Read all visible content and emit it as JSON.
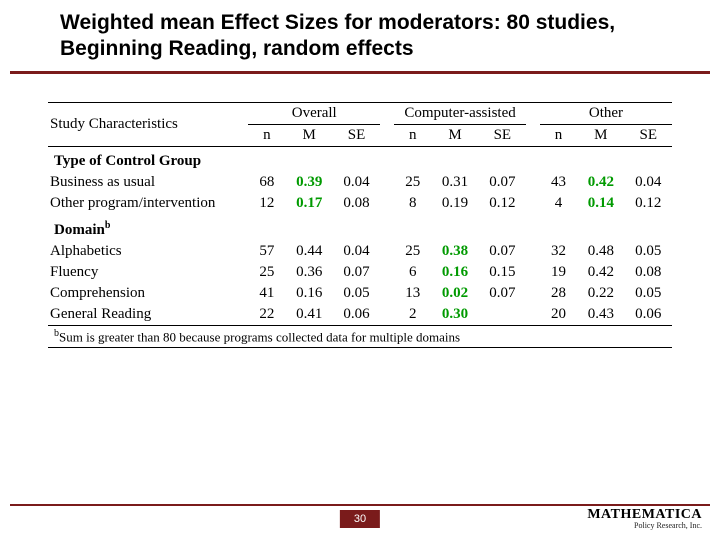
{
  "title": "Weighted mean Effect Sizes for moderators: 80 studies, Beginning Reading, random effects",
  "page_number": "30",
  "logo": {
    "main": "MATHEMATICA",
    "sub": "Policy Research, Inc."
  },
  "headers": {
    "col_label": "Study Characteristics",
    "groups": [
      "Overall",
      "Computer-assisted",
      "Other"
    ],
    "sub": [
      "n",
      "M",
      "SE"
    ]
  },
  "sections": [
    {
      "title": "Type of Control Group",
      "rows": [
        {
          "label": "Business as usual",
          "overall": {
            "n": "68",
            "M": "0.39",
            "SE": "0.04",
            "hl": [
              "M"
            ]
          },
          "computer": {
            "n": "25",
            "M": "0.31",
            "SE": "0.07",
            "hl": []
          },
          "other": {
            "n": "43",
            "M": "0.42",
            "SE": "0.04",
            "hl": [
              "M"
            ]
          }
        },
        {
          "label": "Other program/intervention",
          "overall": {
            "n": "12",
            "M": "0.17",
            "SE": "0.08",
            "hl": [
              "M"
            ]
          },
          "computer": {
            "n": "8",
            "M": "0.19",
            "SE": "0.12",
            "hl": []
          },
          "other": {
            "n": "4",
            "M": "0.14",
            "SE": "0.12",
            "hl": [
              "M"
            ]
          }
        }
      ]
    },
    {
      "title": "Domain",
      "title_sup": "b",
      "rows": [
        {
          "label": "Alphabetics",
          "overall": {
            "n": "57",
            "M": "0.44",
            "SE": "0.04",
            "hl": []
          },
          "computer": {
            "n": "25",
            "M": "0.38",
            "SE": "0.07",
            "hl": [
              "M"
            ]
          },
          "other": {
            "n": "32",
            "M": "0.48",
            "SE": "0.05",
            "hl": []
          }
        },
        {
          "label": "Fluency",
          "overall": {
            "n": "25",
            "M": "0.36",
            "SE": "0.07",
            "hl": []
          },
          "computer": {
            "n": "6",
            "M": "0.16",
            "SE": "0.15",
            "hl": [
              "M"
            ]
          },
          "other": {
            "n": "19",
            "M": "0.42",
            "SE": "0.08",
            "hl": []
          }
        },
        {
          "label": "Comprehension",
          "overall": {
            "n": "41",
            "M": "0.16",
            "SE": "0.05",
            "hl": []
          },
          "computer": {
            "n": "13",
            "M": "0.02",
            "SE": "0.07",
            "hl": [
              "M"
            ]
          },
          "other": {
            "n": "28",
            "M": "0.22",
            "SE": "0.05",
            "hl": []
          }
        },
        {
          "label": "General Reading",
          "overall": {
            "n": "22",
            "M": "0.41",
            "SE": "0.06",
            "hl": []
          },
          "computer": {
            "n": "2",
            "M": "0.30",
            "SE": "",
            "hl": [
              "M"
            ]
          },
          "other": {
            "n": "20",
            "M": "0.43",
            "SE": "0.06",
            "hl": []
          }
        }
      ]
    }
  ],
  "footnote": {
    "sup": "b",
    "text": "Sum is greater than 80 because programs collected data for multiple domains"
  }
}
